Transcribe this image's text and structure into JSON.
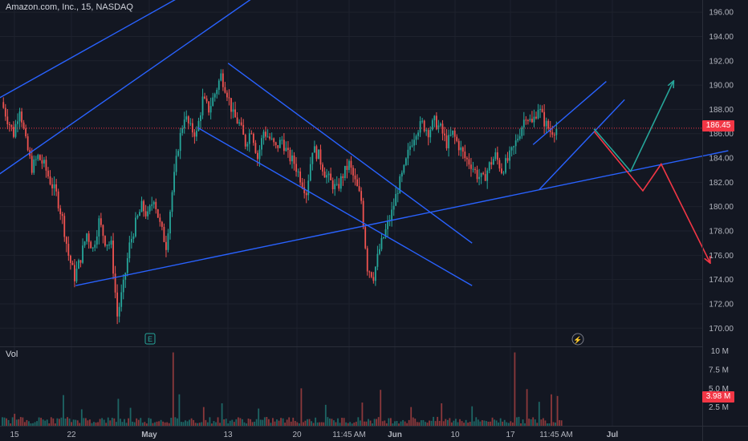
{
  "header": {
    "title": "Amazon.com, Inc., 15, NASDAQ"
  },
  "volume_pane": {
    "label": "Vol",
    "current_value_label": "3.98 M"
  },
  "price_tag": {
    "label": "186.45"
  },
  "event_markers": {
    "earnings_marker": "E",
    "dividend_marker": "⚡"
  },
  "colors": {
    "background": "#131722",
    "up_candle": "#26a69a",
    "down_candle": "#ef5350",
    "trendline": "#2962ff",
    "bull_arrow": "#26a69a",
    "bear_arrow": "#f23645",
    "price_tag": "#f23645"
  },
  "chart_data": {
    "type": "candlestick",
    "title": "Amazon.com, Inc., 15, NASDAQ",
    "price_axis": {
      "ticks": [
        "196.00",
        "194.00",
        "192.00",
        "190.00",
        "188.00",
        "186.00",
        "184.00",
        "182.00",
        "180.00",
        "178.00",
        "176.00",
        "174.00",
        "172.00",
        "170.00"
      ],
      "range": [
        168.5,
        197
      ]
    },
    "volume_axis": {
      "ticks": [
        "10 M",
        "7.5 M",
        "5.0 M",
        "2.5 M"
      ],
      "range": [
        0,
        10.5
      ]
    },
    "time_axis": {
      "ticks": [
        "15",
        "22",
        "May",
        "13",
        "20",
        "11:45 AM",
        "Jun",
        "10",
        "17",
        "11:45 AM",
        "Jul"
      ]
    },
    "last_price": 186.45,
    "last_volume": 3.98,
    "price_path": [
      {
        "t": 0,
        "p": 188.6
      },
      {
        "t": 1,
        "p": 187.2
      },
      {
        "t": 2,
        "p": 186.0
      },
      {
        "t": 3,
        "p": 188.2
      },
      {
        "t": 4,
        "p": 185.3
      },
      {
        "t": 5,
        "p": 183.2
      },
      {
        "t": 6,
        "p": 184.1
      },
      {
        "t": 7,
        "p": 183.4
      },
      {
        "t": 8,
        "p": 182.1
      },
      {
        "t": 9,
        "p": 181.0
      },
      {
        "t": 10,
        "p": 179.0
      },
      {
        "t": 11,
        "p": 176.0
      },
      {
        "t": 12,
        "p": 174.2
      },
      {
        "t": 13,
        "p": 175.8
      },
      {
        "t": 14,
        "p": 177.8
      },
      {
        "t": 15,
        "p": 176.5
      },
      {
        "t": 16,
        "p": 178.8
      },
      {
        "t": 17,
        "p": 177.2
      },
      {
        "t": 18,
        "p": 176.8
      },
      {
        "t": 19,
        "p": 171.0
      },
      {
        "t": 20,
        "p": 173.5
      },
      {
        "t": 21,
        "p": 176.8
      },
      {
        "t": 22,
        "p": 178.6
      },
      {
        "t": 23,
        "p": 180.0
      },
      {
        "t": 24,
        "p": 179.2
      },
      {
        "t": 25,
        "p": 180.8
      },
      {
        "t": 26,
        "p": 178.5
      },
      {
        "t": 27,
        "p": 176.8
      },
      {
        "t": 28,
        "p": 181.2
      },
      {
        "t": 29,
        "p": 185.0
      },
      {
        "t": 30,
        "p": 187.5
      },
      {
        "t": 31,
        "p": 186.4
      },
      {
        "t": 32,
        "p": 186.0
      },
      {
        "t": 33,
        "p": 188.8
      },
      {
        "t": 34,
        "p": 188.0
      },
      {
        "t": 35,
        "p": 189.3
      },
      {
        "t": 36,
        "p": 190.8
      },
      {
        "t": 37,
        "p": 189.4
      },
      {
        "t": 38,
        "p": 187.5
      },
      {
        "t": 39,
        "p": 186.8
      },
      {
        "t": 40,
        "p": 185.2
      },
      {
        "t": 41,
        "p": 186.4
      },
      {
        "t": 42,
        "p": 184.0
      },
      {
        "t": 43,
        "p": 186.2
      },
      {
        "t": 44,
        "p": 185.6
      },
      {
        "t": 45,
        "p": 184.8
      },
      {
        "t": 46,
        "p": 185.5
      },
      {
        "t": 47,
        "p": 184.2
      },
      {
        "t": 48,
        "p": 183.6
      },
      {
        "t": 49,
        "p": 182.4
      },
      {
        "t": 50,
        "p": 181.2
      },
      {
        "t": 51,
        "p": 184.8
      },
      {
        "t": 52,
        "p": 184.2
      },
      {
        "t": 53,
        "p": 182.8
      },
      {
        "t": 54,
        "p": 182.0
      },
      {
        "t": 55,
        "p": 181.4
      },
      {
        "t": 56,
        "p": 182.6
      },
      {
        "t": 57,
        "p": 183.5
      },
      {
        "t": 58,
        "p": 182.0
      },
      {
        "t": 59,
        "p": 180.5
      },
      {
        "t": 60,
        "p": 175.0
      },
      {
        "t": 61,
        "p": 174.3
      },
      {
        "t": 62,
        "p": 176.5
      },
      {
        "t": 63,
        "p": 178.0
      },
      {
        "t": 64,
        "p": 179.5
      },
      {
        "t": 65,
        "p": 181.5
      },
      {
        "t": 66,
        "p": 183.0
      },
      {
        "t": 67,
        "p": 185.0
      },
      {
        "t": 68,
        "p": 186.3
      },
      {
        "t": 69,
        "p": 186.8
      },
      {
        "t": 70,
        "p": 186.2
      },
      {
        "t": 71,
        "p": 187.0
      },
      {
        "t": 72,
        "p": 186.4
      },
      {
        "t": 73,
        "p": 185.2
      },
      {
        "t": 74,
        "p": 186.0
      },
      {
        "t": 75,
        "p": 185.0
      },
      {
        "t": 76,
        "p": 184.0
      },
      {
        "t": 77,
        "p": 183.5
      },
      {
        "t": 78,
        "p": 182.6
      },
      {
        "t": 79,
        "p": 182.2
      },
      {
        "t": 80,
        "p": 183.4
      },
      {
        "t": 81,
        "p": 184.2
      },
      {
        "t": 82,
        "p": 183.0
      },
      {
        "t": 83,
        "p": 183.8
      },
      {
        "t": 84,
        "p": 184.8
      },
      {
        "t": 85,
        "p": 186.2
      },
      {
        "t": 86,
        "p": 187.6
      },
      {
        "t": 87,
        "p": 186.8
      },
      {
        "t": 88,
        "p": 188.2
      },
      {
        "t": 89,
        "p": 187.0
      },
      {
        "t": 90,
        "p": 186.2
      },
      {
        "t": 91,
        "p": 186.45
      }
    ],
    "volume": [
      {
        "t": 2,
        "v": 1.6
      },
      {
        "t": 10,
        "v": 4.1
      },
      {
        "t": 13,
        "v": 2.2
      },
      {
        "t": 19,
        "v": 3.6
      },
      {
        "t": 21,
        "v": 2.4
      },
      {
        "t": 28,
        "v": 9.8
      },
      {
        "t": 29,
        "v": 4.2
      },
      {
        "t": 33,
        "v": 2.5
      },
      {
        "t": 36,
        "v": 3.0
      },
      {
        "t": 42,
        "v": 2.3
      },
      {
        "t": 49,
        "v": 5.0
      },
      {
        "t": 53,
        "v": 2.8
      },
      {
        "t": 59,
        "v": 3.1
      },
      {
        "t": 62,
        "v": 4.8
      },
      {
        "t": 67,
        "v": 2.5
      },
      {
        "t": 72,
        "v": 3.0
      },
      {
        "t": 77,
        "v": 2.6
      },
      {
        "t": 84,
        "v": 9.8
      },
      {
        "t": 86,
        "v": 4.9
      },
      {
        "t": 88,
        "v": 3.2
      },
      {
        "t": 90,
        "v": 4.2
      },
      {
        "t": 91,
        "v": 3.98
      }
    ],
    "drawings": [
      {
        "kind": "trendline",
        "name": "upper-channel-top",
        "from": {
          "t": -1,
          "p": 188.8
        },
        "to": {
          "t": 30,
          "p": 197.5
        }
      },
      {
        "kind": "trendline",
        "name": "upper-channel-bottom",
        "from": {
          "t": -1,
          "p": 182.5
        },
        "to": {
          "t": 42,
          "p": 197.5
        }
      },
      {
        "kind": "trendline",
        "name": "descending-channel-top",
        "from": {
          "t": 37,
          "p": 191.8
        },
        "to": {
          "t": 77,
          "p": 177.0
        }
      },
      {
        "kind": "trendline",
        "name": "descending-channel-bottom",
        "from": {
          "t": 32,
          "p": 186.5
        },
        "to": {
          "t": 77,
          "p": 173.5
        }
      },
      {
        "kind": "trendline",
        "name": "rising-support",
        "from": {
          "t": 12,
          "p": 173.5
        },
        "to": {
          "t": 119,
          "p": 184.6
        }
      },
      {
        "kind": "trendline",
        "name": "rising-wedge-bottom",
        "from": {
          "t": 88,
          "p": 181.4
        },
        "to": {
          "t": 102,
          "p": 188.8
        }
      },
      {
        "kind": "trendline",
        "name": "rising-wedge-top",
        "from": {
          "t": 87,
          "p": 185.1
        },
        "to": {
          "t": 99,
          "p": 190.3
        }
      },
      {
        "kind": "bull-scenario-arrow",
        "points": [
          {
            "t": 97,
            "p": 186.4
          },
          {
            "t": 103,
            "p": 182.9
          },
          {
            "t": 110,
            "p": 190.3
          }
        ]
      },
      {
        "kind": "bear-scenario-arrow",
        "points": [
          {
            "t": 97,
            "p": 186.2
          },
          {
            "t": 105,
            "p": 181.3
          },
          {
            "t": 108,
            "p": 183.5
          },
          {
            "t": 116,
            "p": 175.4
          }
        ]
      }
    ]
  }
}
